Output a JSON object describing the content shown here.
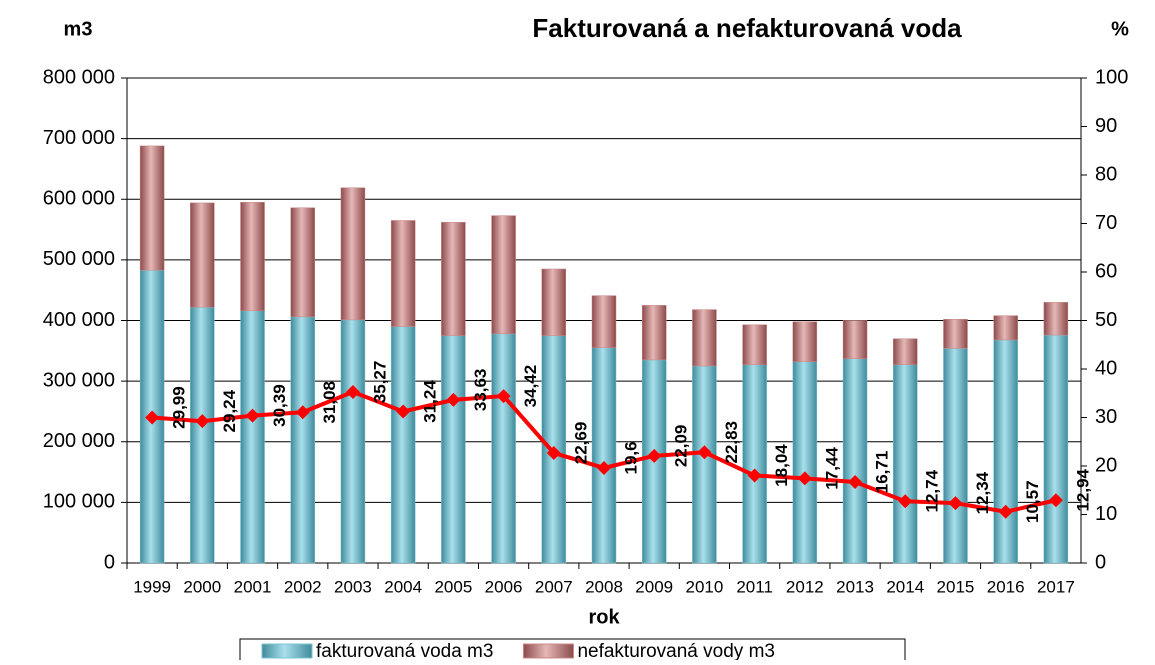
{
  "chart_data": {
    "type": "bar",
    "title": "Fakturovaná a nefakturovaná voda",
    "y_label": "m3",
    "y2_label": "%",
    "x_label": "rok",
    "categories": [
      "1999",
      "2000",
      "2001",
      "2002",
      "2003",
      "2004",
      "2005",
      "2006",
      "2007",
      "2008",
      "2009",
      "2010",
      "2011",
      "2012",
      "2013",
      "2014",
      "2015",
      "2016",
      "2017"
    ],
    "stacked": true,
    "series": [
      {
        "name": "fakturovaná voda m3",
        "color": "#7cc3d2",
        "type": "bar",
        "values": [
          483000,
          422000,
          416000,
          406000,
          401000,
          390000,
          375000,
          378000,
          375000,
          355000,
          335000,
          325000,
          327000,
          332000,
          337000,
          327000,
          354000,
          368000,
          376000
        ]
      },
      {
        "name": "nefakturovaná vody m3",
        "color": "#c98888",
        "type": "bar",
        "values": [
          205000,
          172000,
          179000,
          180000,
          218000,
          175000,
          187000,
          195000,
          110000,
          86000,
          90000,
          93000,
          66000,
          66000,
          63000,
          43000,
          48000,
          40000,
          54000
        ]
      },
      {
        "type": "line",
        "axis": "y2",
        "color": "#ff0000",
        "values": [
          29.99,
          29.24,
          30.39,
          31.08,
          35.27,
          31.24,
          33.63,
          34.42,
          22.69,
          19.6,
          22.09,
          22.83,
          18.04,
          17.44,
          16.71,
          12.74,
          12.34,
          10.57,
          12.94
        ],
        "value_labels": [
          "29,99",
          "29,24",
          "30,39",
          "31,08",
          "35,27",
          "31,24",
          "33,63",
          "34,42",
          "22,69",
          "19,6",
          "22,09",
          "22,83",
          "18,04",
          "17,44",
          "16,71",
          "12,74",
          "12,34",
          "10,57",
          "12,94"
        ]
      }
    ],
    "ylim": [
      0,
      800000
    ],
    "yticks": [
      0,
      {
        "value": 100000,
        "label": "100 000"
      },
      {
        "value": 200000,
        "label": "200 000"
      },
      {
        "value": 300000,
        "label": "300 000"
      },
      {
        "value": 400000,
        "label": "400 000"
      },
      {
        "value": 500000,
        "label": "500 000"
      },
      {
        "value": 600000,
        "label": "600 000"
      },
      {
        "value": 700000,
        "label": "700 000"
      },
      {
        "value": 800000,
        "label": "800 000"
      }
    ],
    "y2lim": [
      0,
      100
    ],
    "y2ticks": [
      0,
      10,
      20,
      30,
      40,
      50,
      60,
      70,
      80,
      90,
      100
    ],
    "grid": true
  }
}
